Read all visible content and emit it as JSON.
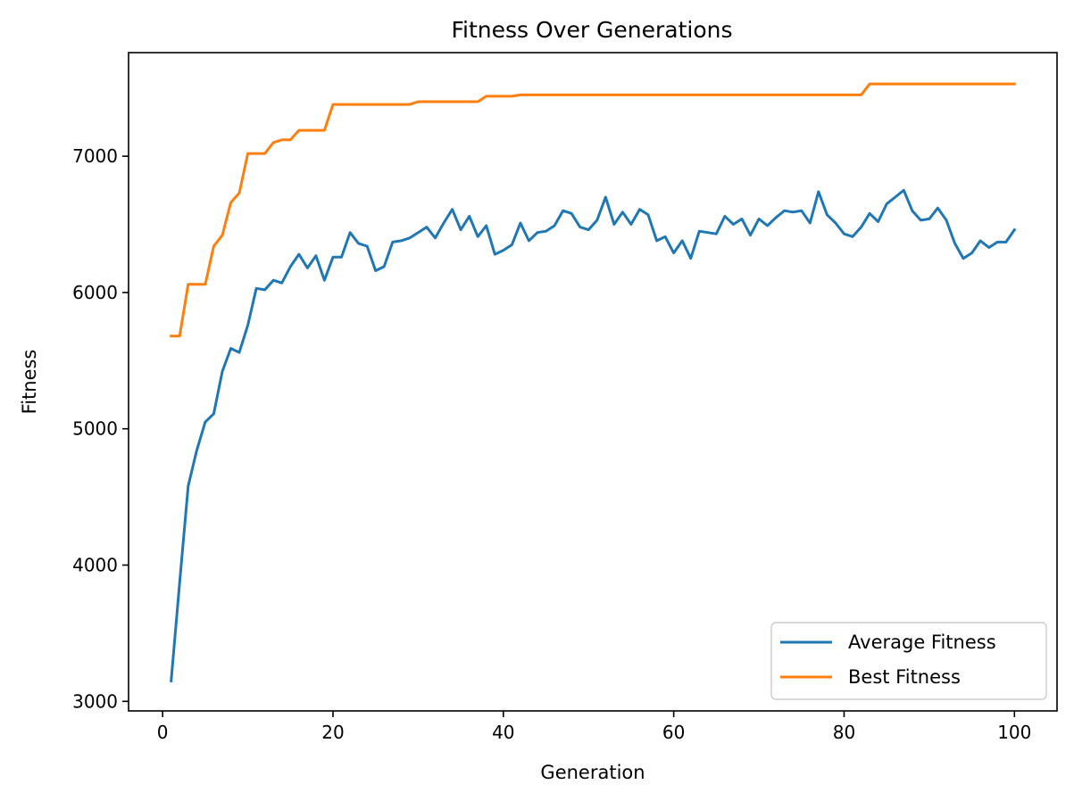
{
  "chart_data": {
    "type": "line",
    "title": "Fitness Over Generations",
    "xlabel": "Generation",
    "ylabel": "Fitness",
    "xlim": [
      -4,
      105
    ],
    "ylim": [
      2930,
      7760
    ],
    "xticks": [
      0,
      20,
      40,
      60,
      80,
      100
    ],
    "yticks": [
      3000,
      4000,
      5000,
      6000,
      7000
    ],
    "grid": false,
    "legend_position": "lower-right",
    "series": [
      {
        "name": "Average Fitness",
        "color": "#1f77b4",
        "x": [
          1,
          2,
          3,
          4,
          5,
          6,
          7,
          8,
          9,
          10,
          11,
          12,
          13,
          14,
          15,
          16,
          17,
          18,
          19,
          20,
          21,
          22,
          23,
          24,
          25,
          26,
          27,
          28,
          29,
          30,
          31,
          32,
          33,
          34,
          35,
          36,
          37,
          38,
          39,
          40,
          41,
          42,
          43,
          44,
          45,
          46,
          47,
          48,
          49,
          50,
          51,
          52,
          53,
          54,
          55,
          56,
          57,
          58,
          59,
          60,
          61,
          62,
          63,
          64,
          65,
          66,
          67,
          68,
          69,
          70,
          71,
          72,
          73,
          74,
          75,
          76,
          77,
          78,
          79,
          80,
          81,
          82,
          83,
          84,
          85,
          86,
          87,
          88,
          89,
          90,
          91,
          92,
          93,
          94,
          95,
          96,
          97,
          98,
          99,
          100
        ],
        "values": [
          3150,
          3870,
          4580,
          4840,
          5050,
          5110,
          5420,
          5590,
          5560,
          5760,
          6030,
          6020,
          6090,
          6070,
          6190,
          6280,
          6180,
          6270,
          6090,
          6260,
          6260,
          6440,
          6360,
          6340,
          6160,
          6190,
          6370,
          6380,
          6400,
          6440,
          6480,
          6400,
          6510,
          6610,
          6460,
          6560,
          6410,
          6490,
          6280,
          6310,
          6350,
          6510,
          6380,
          6440,
          6450,
          6490,
          6600,
          6580,
          6480,
          6460,
          6530,
          6700,
          6500,
          6590,
          6500,
          6610,
          6570,
          6380,
          6410,
          6290,
          6380,
          6250,
          6450,
          6440,
          6430,
          6560,
          6500,
          6540,
          6420,
          6540,
          6490,
          6550,
          6600,
          6590,
          6600,
          6510,
          6740,
          6570,
          6510,
          6430,
          6410,
          6480,
          6580,
          6520,
          6650,
          6700,
          6750,
          6600,
          6530,
          6540,
          6620,
          6530,
          6360,
          6250,
          6290,
          6380,
          6330,
          6370,
          6370,
          6460
        ]
      },
      {
        "name": "Best Fitness",
        "color": "#ff7f0e",
        "x": [
          1,
          2,
          3,
          4,
          5,
          6,
          7,
          8,
          9,
          10,
          11,
          12,
          13,
          14,
          15,
          16,
          17,
          18,
          19,
          20,
          21,
          22,
          23,
          24,
          25,
          26,
          27,
          28,
          29,
          30,
          31,
          32,
          33,
          34,
          35,
          36,
          37,
          38,
          39,
          40,
          41,
          42,
          43,
          44,
          45,
          46,
          47,
          48,
          49,
          50,
          51,
          52,
          53,
          54,
          55,
          56,
          57,
          58,
          59,
          60,
          61,
          62,
          63,
          64,
          65,
          66,
          67,
          68,
          69,
          70,
          71,
          72,
          73,
          74,
          75,
          76,
          77,
          78,
          79,
          80,
          81,
          82,
          83,
          84,
          85,
          86,
          87,
          88,
          89,
          90,
          91,
          92,
          93,
          94,
          95,
          96,
          97,
          98,
          99,
          100
        ],
        "values": [
          5680,
          5680,
          6060,
          6060,
          6060,
          6340,
          6420,
          6660,
          6730,
          7020,
          7020,
          7020,
          7100,
          7120,
          7120,
          7190,
          7190,
          7190,
          7190,
          7380,
          7380,
          7380,
          7380,
          7380,
          7380,
          7380,
          7380,
          7380,
          7380,
          7400,
          7400,
          7400,
          7400,
          7400,
          7400,
          7400,
          7400,
          7440,
          7440,
          7440,
          7440,
          7450,
          7450,
          7450,
          7450,
          7450,
          7450,
          7450,
          7450,
          7450,
          7450,
          7450,
          7450,
          7450,
          7450,
          7450,
          7450,
          7450,
          7450,
          7450,
          7450,
          7450,
          7450,
          7450,
          7450,
          7450,
          7450,
          7450,
          7450,
          7450,
          7450,
          7450,
          7450,
          7450,
          7450,
          7450,
          7450,
          7450,
          7450,
          7450,
          7450,
          7450,
          7530,
          7530,
          7530,
          7530,
          7530,
          7530,
          7530,
          7530,
          7530,
          7530,
          7530,
          7530,
          7530,
          7530,
          7530,
          7530,
          7530,
          7530
        ]
      }
    ]
  }
}
